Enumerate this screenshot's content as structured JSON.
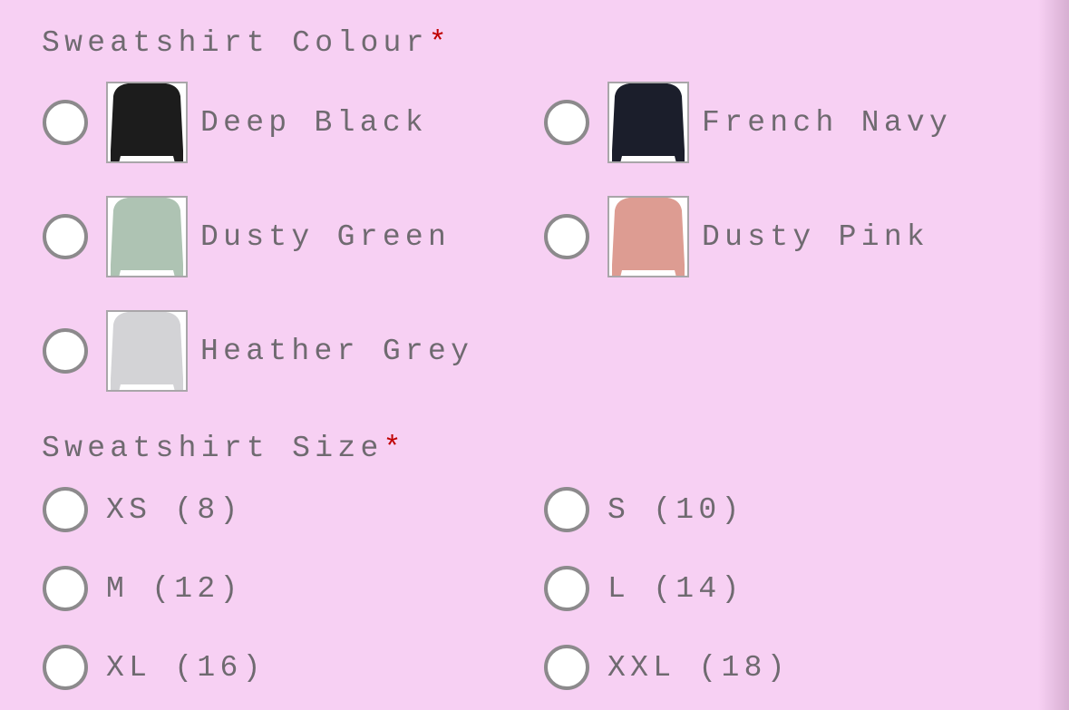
{
  "colour": {
    "heading": "Sweatshirt Colour",
    "required_mark": "*",
    "options": [
      {
        "label": "Deep Black",
        "swatch": "#1c1c1c",
        "selected": false
      },
      {
        "label": "French Navy",
        "swatch": "#1b1e2b",
        "selected": false
      },
      {
        "label": "Dusty Green",
        "swatch": "#aec3b3",
        "selected": false
      },
      {
        "label": "Dusty Pink",
        "swatch": "#dd9c92",
        "selected": false
      },
      {
        "label": "Heather Grey",
        "swatch": "#d3d3d6",
        "selected": false
      }
    ]
  },
  "size": {
    "heading": "Sweatshirt Size",
    "required_mark": "*",
    "options": [
      {
        "label": "XS (8)",
        "selected": false
      },
      {
        "label": "S (10)",
        "selected": false
      },
      {
        "label": "M (12)",
        "selected": false
      },
      {
        "label": "L (14)",
        "selected": false
      },
      {
        "label": "XL (16)",
        "selected": false
      },
      {
        "label": "XXL (18)",
        "selected": false
      }
    ]
  }
}
